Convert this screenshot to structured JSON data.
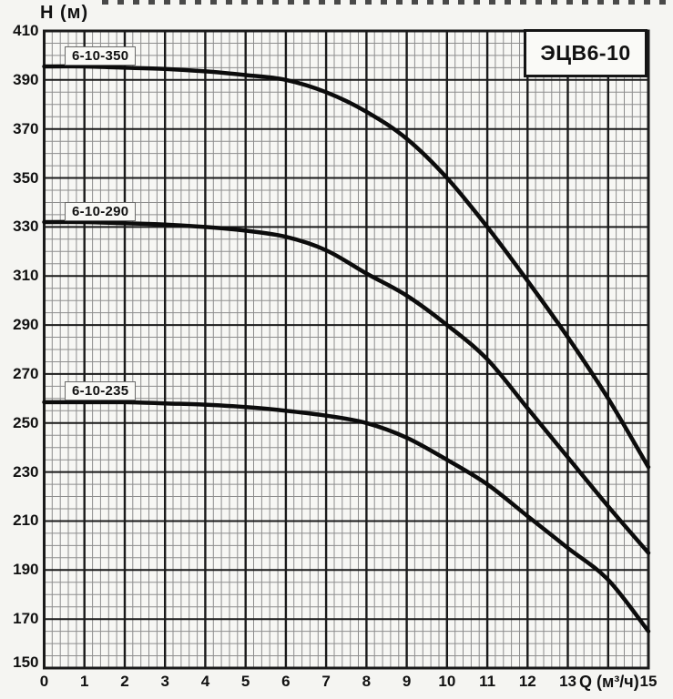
{
  "chart_data": {
    "type": "line",
    "title": "ЭЦВ6-10",
    "xlabel": "Q (м³/ч)",
    "ylabel": "Н (м)",
    "xlim": [
      0,
      15
    ],
    "ylim": [
      150,
      410
    ],
    "grid": "on",
    "x_major_step": 1,
    "x_minor_step": 0.2,
    "y_major_step": 20,
    "y_minor_step": 5,
    "legend_position": "labels-on-curves",
    "x_ticks": {
      "positions": [
        0,
        1,
        2,
        3,
        4,
        5,
        6,
        7,
        8,
        9,
        10,
        11,
        12,
        13,
        15
      ],
      "labels": [
        "0",
        "1",
        "2",
        "3",
        "4",
        "5",
        "6",
        "7",
        "8",
        "9",
        "10",
        "11",
        "12",
        "13",
        "15"
      ]
    },
    "xlabel_position": 14,
    "y_ticks": {
      "positions": [
        410,
        390,
        370,
        350,
        330,
        310,
        290,
        270,
        250,
        230,
        210,
        190,
        170,
        150
      ],
      "labels": [
        "410",
        "390",
        "370",
        "350",
        "330",
        "310",
        "290",
        "270",
        "250",
        "230",
        "210",
        "190",
        "170",
        "150"
      ]
    },
    "x": [
      0,
      1,
      2,
      3,
      4,
      5,
      6,
      7,
      8,
      9,
      10,
      11,
      12,
      13,
      14,
      15
    ],
    "series": [
      {
        "name": "6-10-350",
        "values": [
          395.5,
          395.5,
          395,
          394.5,
          393.5,
          392,
          390,
          385,
          377,
          366,
          350,
          330,
          308,
          285,
          260,
          232
        ]
      },
      {
        "name": "6-10-290",
        "values": [
          332,
          332,
          331.5,
          331,
          330,
          328.5,
          326,
          320.5,
          311,
          302,
          290,
          276,
          256,
          236,
          216,
          197
        ]
      },
      {
        "name": "6-10-235",
        "values": [
          258.5,
          258.5,
          258.5,
          258,
          257.5,
          256.5,
          255,
          253,
          250,
          244,
          235,
          225,
          212,
          199,
          186,
          165
        ]
      }
    ]
  },
  "colors": {
    "background": "#f5f5f2",
    "plot_background": "#f7f7f4",
    "major_grid": "#1a1a1a",
    "minor_grid": "#8d8d8d",
    "curve": "#0c0c0c",
    "text": "#111111"
  }
}
